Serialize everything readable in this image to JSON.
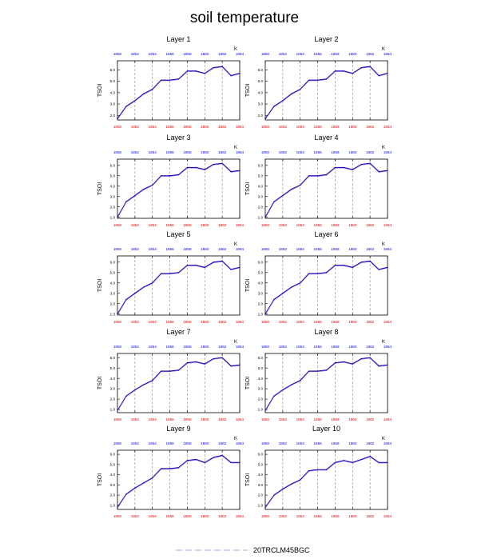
{
  "figure": {
    "title": "soil temperature"
  },
  "legend": {
    "label": "20TRCLM45BGC",
    "color": "#c79ae6"
  },
  "colors": {
    "bottom_ticks": "#e00000",
    "top_ticks": "#0000e0",
    "line_main": "#0000b0",
    "line_overlay": "#8a4ad6",
    "grid": "#888888"
  },
  "chart_data": [
    {
      "type": "line",
      "title": "Layer 1",
      "ylabel": "TSOI",
      "unit": "K",
      "ylim": [
        1.6,
        6.8
      ],
      "yticks": [
        "2.0",
        "3.0",
        "4.0",
        "5.0",
        "6.0"
      ],
      "yticks_values": [
        2,
        3,
        4,
        5,
        6
      ],
      "xlim": [
        1850,
        1864
      ],
      "xticks": [
        "1850",
        "1852",
        "1854",
        "1856",
        "1858",
        "1860",
        "1862",
        "1864"
      ],
      "xticks_values": [
        1850,
        1852,
        1854,
        1856,
        1858,
        1860,
        1862,
        1864
      ],
      "x": [
        1850,
        1851,
        1852,
        1853,
        1854,
        1855,
        1856,
        1857,
        1858,
        1859,
        1860,
        1861,
        1862,
        1863,
        1864
      ],
      "series": [
        {
          "name": "20TRCLM45BGC",
          "values": [
            1.7,
            2.8,
            3.3,
            3.9,
            4.3,
            5.1,
            5.1,
            5.2,
            5.9,
            5.9,
            5.7,
            6.2,
            6.3,
            5.5,
            5.7
          ]
        }
      ]
    },
    {
      "type": "line",
      "title": "Layer 2",
      "ylabel": "TSOI",
      "unit": "K",
      "ylim": [
        1.6,
        6.8
      ],
      "yticks": [
        "2.0",
        "3.0",
        "4.0",
        "5.0",
        "6.0"
      ],
      "yticks_values": [
        2,
        3,
        4,
        5,
        6
      ],
      "xlim": [
        1850,
        1864
      ],
      "xticks": [
        "1850",
        "1852",
        "1854",
        "1856",
        "1858",
        "1860",
        "1862",
        "1864"
      ],
      "xticks_values": [
        1850,
        1852,
        1854,
        1856,
        1858,
        1860,
        1862,
        1864
      ],
      "x": [
        1850,
        1851,
        1852,
        1853,
        1854,
        1855,
        1856,
        1857,
        1858,
        1859,
        1860,
        1861,
        1862,
        1863,
        1864
      ],
      "series": [
        {
          "name": "20TRCLM45BGC",
          "values": [
            1.7,
            2.8,
            3.3,
            3.9,
            4.3,
            5.1,
            5.1,
            5.2,
            5.9,
            5.9,
            5.7,
            6.2,
            6.3,
            5.5,
            5.7
          ]
        }
      ]
    },
    {
      "type": "line",
      "title": "Layer 3",
      "ylabel": "TSOI",
      "unit": "K",
      "ylim": [
        0.9,
        6.6
      ],
      "yticks": [
        "1.0",
        "2.0",
        "3.0",
        "4.0",
        "5.0",
        "6.0"
      ],
      "yticks_values": [
        1,
        2,
        3,
        4,
        5,
        6
      ],
      "xlim": [
        1850,
        1864
      ],
      "xticks": [
        "1850",
        "1852",
        "1854",
        "1856",
        "1858",
        "1860",
        "1862",
        "1864"
      ],
      "xticks_values": [
        1850,
        1852,
        1854,
        1856,
        1858,
        1860,
        1862,
        1864
      ],
      "x": [
        1850,
        1851,
        1852,
        1853,
        1854,
        1855,
        1856,
        1857,
        1858,
        1859,
        1860,
        1861,
        1862,
        1863,
        1864
      ],
      "series": [
        {
          "name": "20TRCLM45BGC",
          "values": [
            1.0,
            2.5,
            3.1,
            3.7,
            4.1,
            5.0,
            5.0,
            5.1,
            5.8,
            5.8,
            5.6,
            6.1,
            6.2,
            5.4,
            5.5
          ]
        }
      ]
    },
    {
      "type": "line",
      "title": "Layer 4",
      "ylabel": "TSOI",
      "unit": "K",
      "ylim": [
        0.9,
        6.6
      ],
      "yticks": [
        "1.0",
        "2.0",
        "3.0",
        "4.0",
        "5.0",
        "6.0"
      ],
      "yticks_values": [
        1,
        2,
        3,
        4,
        5,
        6
      ],
      "xlim": [
        1850,
        1864
      ],
      "xticks": [
        "1850",
        "1852",
        "1854",
        "1856",
        "1858",
        "1860",
        "1862",
        "1864"
      ],
      "xticks_values": [
        1850,
        1852,
        1854,
        1856,
        1858,
        1860,
        1862,
        1864
      ],
      "x": [
        1850,
        1851,
        1852,
        1853,
        1854,
        1855,
        1856,
        1857,
        1858,
        1859,
        1860,
        1861,
        1862,
        1863,
        1864
      ],
      "series": [
        {
          "name": "20TRCLM45BGC",
          "values": [
            1.0,
            2.5,
            3.1,
            3.7,
            4.1,
            5.0,
            5.0,
            5.1,
            5.8,
            5.8,
            5.6,
            6.1,
            6.2,
            5.4,
            5.5
          ]
        }
      ]
    },
    {
      "type": "line",
      "title": "Layer 5",
      "ylabel": "TSOI",
      "unit": "K",
      "ylim": [
        0.9,
        6.6
      ],
      "yticks": [
        "1.0",
        "2.0",
        "3.0",
        "4.0",
        "5.0",
        "6.0"
      ],
      "yticks_values": [
        1,
        2,
        3,
        4,
        5,
        6
      ],
      "xlim": [
        1850,
        1864
      ],
      "xticks": [
        "1850",
        "1852",
        "1854",
        "1856",
        "1858",
        "1860",
        "1862",
        "1864"
      ],
      "xticks_values": [
        1850,
        1852,
        1854,
        1856,
        1858,
        1860,
        1862,
        1864
      ],
      "x": [
        1850,
        1851,
        1852,
        1853,
        1854,
        1855,
        1856,
        1857,
        1858,
        1859,
        1860,
        1861,
        1862,
        1863,
        1864
      ],
      "series": [
        {
          "name": "20TRCLM45BGC",
          "values": [
            1.0,
            2.4,
            3.0,
            3.6,
            4.0,
            4.9,
            4.9,
            5.0,
            5.7,
            5.7,
            5.5,
            6.0,
            6.1,
            5.3,
            5.5
          ]
        }
      ]
    },
    {
      "type": "line",
      "title": "Layer 6",
      "ylabel": "TSOI",
      "unit": "K",
      "ylim": [
        0.9,
        6.6
      ],
      "yticks": [
        "1.0",
        "2.0",
        "3.0",
        "4.0",
        "5.0",
        "6.0"
      ],
      "yticks_values": [
        1,
        2,
        3,
        4,
        5,
        6
      ],
      "xlim": [
        1850,
        1864
      ],
      "xticks": [
        "1850",
        "1852",
        "1854",
        "1856",
        "1858",
        "1860",
        "1862",
        "1864"
      ],
      "xticks_values": [
        1850,
        1852,
        1854,
        1856,
        1858,
        1860,
        1862,
        1864
      ],
      "x": [
        1850,
        1851,
        1852,
        1853,
        1854,
        1855,
        1856,
        1857,
        1858,
        1859,
        1860,
        1861,
        1862,
        1863,
        1864
      ],
      "series": [
        {
          "name": "20TRCLM45BGC",
          "values": [
            1.0,
            2.4,
            3.0,
            3.6,
            4.0,
            4.9,
            4.9,
            5.0,
            5.7,
            5.7,
            5.5,
            6.0,
            6.1,
            5.3,
            5.5
          ]
        }
      ]
    },
    {
      "type": "line",
      "title": "Layer 7",
      "ylabel": "TSOI",
      "unit": "K",
      "ylim": [
        0.7,
        6.4
      ],
      "yticks": [
        "1.0",
        "2.0",
        "3.0",
        "4.0",
        "5.0",
        "6.0"
      ],
      "yticks_values": [
        1,
        2,
        3,
        4,
        5,
        6
      ],
      "xlim": [
        1850,
        1864
      ],
      "xticks": [
        "1850",
        "1852",
        "1854",
        "1856",
        "1858",
        "1860",
        "1862",
        "1864"
      ],
      "xticks_values": [
        1850,
        1852,
        1854,
        1856,
        1858,
        1860,
        1862,
        1864
      ],
      "x": [
        1850,
        1851,
        1852,
        1853,
        1854,
        1855,
        1856,
        1857,
        1858,
        1859,
        1860,
        1861,
        1862,
        1863,
        1864
      ],
      "series": [
        {
          "name": "20TRCLM45BGC",
          "values": [
            0.9,
            2.3,
            2.9,
            3.4,
            3.8,
            4.7,
            4.7,
            4.8,
            5.5,
            5.6,
            5.4,
            5.9,
            6.0,
            5.2,
            5.3
          ]
        }
      ]
    },
    {
      "type": "line",
      "title": "Layer 8",
      "ylabel": "TSOI",
      "unit": "K",
      "ylim": [
        0.7,
        6.4
      ],
      "yticks": [
        "1.0",
        "2.0",
        "3.0",
        "4.0",
        "5.0",
        "6.0"
      ],
      "yticks_values": [
        1,
        2,
        3,
        4,
        5,
        6
      ],
      "xlim": [
        1850,
        1864
      ],
      "xticks": [
        "1850",
        "1852",
        "1854",
        "1856",
        "1858",
        "1860",
        "1862",
        "1864"
      ],
      "xticks_values": [
        1850,
        1852,
        1854,
        1856,
        1858,
        1860,
        1862,
        1864
      ],
      "x": [
        1850,
        1851,
        1852,
        1853,
        1854,
        1855,
        1856,
        1857,
        1858,
        1859,
        1860,
        1861,
        1862,
        1863,
        1864
      ],
      "series": [
        {
          "name": "20TRCLM45BGC",
          "values": [
            0.9,
            2.3,
            2.9,
            3.4,
            3.8,
            4.7,
            4.7,
            4.8,
            5.5,
            5.6,
            5.4,
            5.9,
            6.0,
            5.2,
            5.3
          ]
        }
      ]
    },
    {
      "type": "line",
      "title": "Layer 9",
      "ylabel": "TSOI",
      "unit": "K",
      "ylim": [
        0.6,
        6.4
      ],
      "yticks": [
        "1.0",
        "2.0",
        "3.0",
        "4.0",
        "5.0",
        "6.0"
      ],
      "yticks_values": [
        1,
        2,
        3,
        4,
        5,
        6
      ],
      "xlim": [
        1850,
        1864
      ],
      "xticks": [
        "1850",
        "1852",
        "1854",
        "1856",
        "1858",
        "1860",
        "1862",
        "1864"
      ],
      "xticks_values": [
        1850,
        1852,
        1854,
        1856,
        1858,
        1860,
        1862,
        1864
      ],
      "x": [
        1850,
        1851,
        1852,
        1853,
        1854,
        1855,
        1856,
        1857,
        1858,
        1859,
        1860,
        1861,
        1862,
        1863,
        1864
      ],
      "series": [
        {
          "name": "20TRCLM45BGC",
          "values": [
            0.8,
            2.1,
            2.7,
            3.2,
            3.7,
            4.6,
            4.6,
            4.7,
            5.4,
            5.5,
            5.2,
            5.7,
            5.9,
            5.2,
            5.2
          ]
        }
      ]
    },
    {
      "type": "line",
      "title": "Layer 10",
      "ylabel": "TSOI",
      "unit": "K",
      "ylim": [
        0.6,
        6.4
      ],
      "yticks": [
        "1.0",
        "2.0",
        "3.0",
        "4.0",
        "5.0",
        "6.0"
      ],
      "yticks_values": [
        1,
        2,
        3,
        4,
        5,
        6
      ],
      "xlim": [
        1850,
        1864
      ],
      "xticks": [
        "1850",
        "1852",
        "1854",
        "1856",
        "1858",
        "1860",
        "1862",
        "1864"
      ],
      "xticks_values": [
        1850,
        1852,
        1854,
        1856,
        1858,
        1860,
        1862,
        1864
      ],
      "x": [
        1850,
        1851,
        1852,
        1853,
        1854,
        1855,
        1856,
        1857,
        1858,
        1859,
        1860,
        1861,
        1862,
        1863,
        1864
      ],
      "series": [
        {
          "name": "20TRCLM45BGC",
          "values": [
            0.8,
            2.0,
            2.6,
            3.1,
            3.5,
            4.4,
            4.5,
            4.5,
            5.2,
            5.4,
            5.2,
            5.5,
            5.8,
            5.2,
            5.2
          ]
        }
      ]
    }
  ]
}
